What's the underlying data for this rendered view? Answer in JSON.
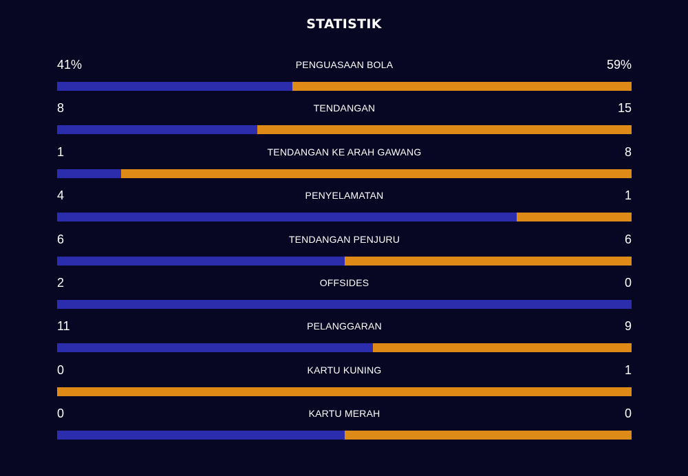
{
  "title": "STATISTIK",
  "colors": {
    "background": "#070724",
    "home": "#2c2dad",
    "away": "#de8a16"
  },
  "stats": [
    {
      "label": "PENGUASAAN BOLA",
      "home": "41%",
      "away": "59%",
      "home_fraction": 0.41
    },
    {
      "label": "TENDANGAN",
      "home": "8",
      "away": "15",
      "home_fraction": 0.348
    },
    {
      "label": "TENDANGAN KE ARAH GAWANG",
      "home": "1",
      "away": "8",
      "home_fraction": 0.111
    },
    {
      "label": "PENYELAMATAN",
      "home": "4",
      "away": "1",
      "home_fraction": 0.8
    },
    {
      "label": "TENDANGAN PENJURU",
      "home": "6",
      "away": "6",
      "home_fraction": 0.5
    },
    {
      "label": "OFFSIDES",
      "home": "2",
      "away": "0",
      "home_fraction": 1.0
    },
    {
      "label": "PELANGGARAN",
      "home": "11",
      "away": "9",
      "home_fraction": 0.55
    },
    {
      "label": "KARTU KUNING",
      "home": "0",
      "away": "1",
      "home_fraction": 0.0
    },
    {
      "label": "KARTU MERAH",
      "home": "0",
      "away": "0",
      "home_fraction": 0.5
    }
  ]
}
